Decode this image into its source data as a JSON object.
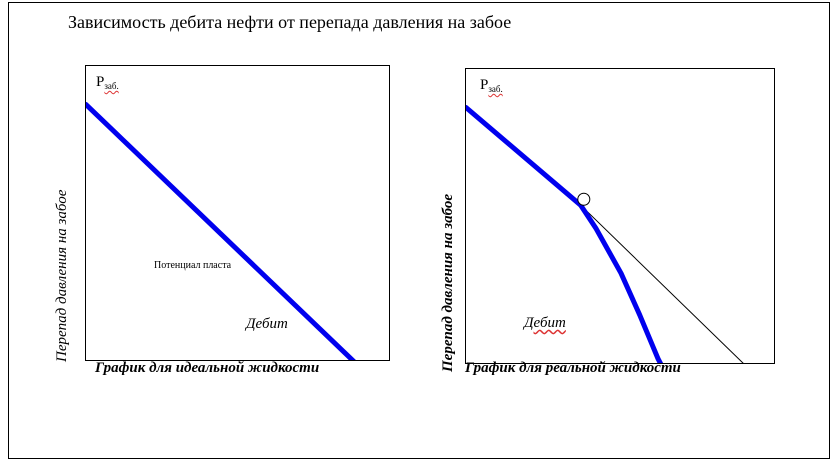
{
  "page_title": "Зависимость дебита нефти от перепада давления на забое",
  "chart_data": [
    {
      "type": "line",
      "title": "",
      "xlabel": "График для идеальной жидкости",
      "ylabel": "Перепад давления на забое",
      "y_axis_tag": "P",
      "y_axis_tag_sub": "заб.",
      "annotation": "Потенциал пласта",
      "series_label": "Дебит",
      "xlim": [
        0,
        1
      ],
      "ylim": [
        0,
        1
      ],
      "series": [
        {
          "color": "#0000ee",
          "x": [
            0,
            0.88
          ],
          "y": [
            0.87,
            0
          ]
        }
      ]
    },
    {
      "type": "line",
      "title": "",
      "xlabel": "График для реальной жидкости",
      "ylabel": "Перепад давления на забое",
      "y_axis_tag": "P",
      "y_axis_tag_sub": "заб.",
      "series_label": "Дебит",
      "xlim": [
        0,
        1
      ],
      "ylim": [
        0,
        1
      ],
      "bubble_point": {
        "x": 0.38,
        "y": 0.56
      },
      "series": [
        {
          "color": "#0000ee",
          "x": [
            0,
            0.37,
            0.42,
            0.5,
            0.56,
            0.6,
            0.62,
            0.63
          ],
          "y": [
            0.87,
            0.54,
            0.46,
            0.31,
            0.17,
            0.07,
            0.02,
            0
          ]
        },
        {
          "color": "#000000",
          "x": [
            0.37,
            0.9
          ],
          "y": [
            0.54,
            0
          ]
        }
      ]
    }
  ]
}
